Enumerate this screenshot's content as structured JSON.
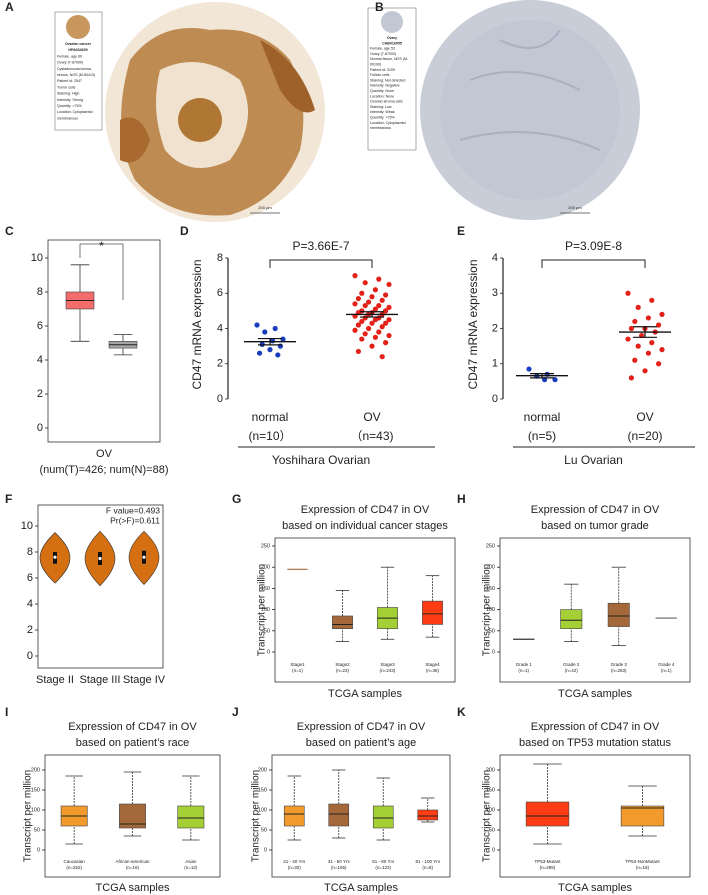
{
  "panel_labels": [
    "A",
    "B",
    "C",
    "D",
    "E",
    "F",
    "G",
    "H",
    "I",
    "J",
    "K"
  ],
  "image_panels": [
    {
      "card": [
        "Ovarian cancer",
        "HPA034609",
        "Female, age 60",
        "Ovary (T-87000)",
        "Cystadenocarcinoma,",
        "serous, NOS (M-84413)",
        "Patient id: 2547",
        "Tumor cells",
        "Staining: High",
        "Intensity: Strong",
        "Quantity: >75%",
        "Location: Cytoplasmic/",
        "membranous"
      ],
      "scale_bar": "200 µm"
    },
    {
      "card": [
        "Ovary",
        "CAB016055",
        "Female, age 53",
        "Ovary (T-87000)",
        "Normal tissue, NOS (M-",
        "00100)",
        "Patient id: 3109",
        "Follicle cells",
        "Staining: Not detected",
        "Intensity: Negative",
        "Quantity: None",
        "Location: None",
        "Ovarian stroma cells",
        "Staining: Low",
        "Intensity: Weak",
        "Quantity: >75%",
        "Location: Cytoplasmic/",
        "membranous"
      ],
      "scale_bar": "200 µm"
    }
  ],
  "chart_data": [
    {
      "type": "box",
      "ylim": [
        0,
        10
      ],
      "yticks": [
        0,
        2,
        4,
        6,
        8,
        10
      ],
      "frame": true,
      "categories": [
        null,
        null
      ],
      "colors": [
        "#f36b6b",
        "#a6a6a6"
      ],
      "whisker_low": [
        5.1,
        4.3
      ],
      "q1": [
        7.0,
        4.7
      ],
      "median": [
        7.5,
        4.9
      ],
      "q3": [
        8.0,
        5.1
      ],
      "whisker_high": [
        9.6,
        5.5
      ],
      "xlabel": "OV",
      "xlabel2": "(num(T)=426; num(N)=88)",
      "annotation": "*"
    },
    {
      "type": "dot",
      "ylim": [
        0,
        8
      ],
      "yticks": [
        0,
        2,
        4,
        6,
        8
      ],
      "frame": false,
      "ylabel": "CD47 mRNA expression",
      "categories": [
        "normal",
        "OV"
      ],
      "n_labels": [
        "(n=10）",
        "（n=43)"
      ],
      "group_label": "Yoshihara Ovarian",
      "p_value": "P=3.66E-7",
      "colors": [
        "#1a3dbd",
        "#e32119"
      ],
      "points": [
        [
          4.2,
          4.0,
          3.8,
          3.4,
          3.3,
          3.1,
          3.0,
          2.8,
          2.6,
          2.5
        ],
        [
          7.0,
          6.8,
          6.6,
          6.5,
          6.2,
          6.0,
          5.9,
          5.8,
          5.7,
          5.6,
          5.5,
          5.4,
          5.3,
          5.3,
          5.2,
          5.1,
          5.0,
          5.0,
          4.9,
          4.9,
          4.8,
          4.8,
          4.7,
          4.6,
          4.6,
          4.5,
          4.5,
          4.4,
          4.3,
          4.3,
          4.2,
          4.1,
          4.0,
          3.9,
          3.8,
          3.7,
          3.6,
          3.5,
          3.4,
          3.2,
          3.0,
          2.7,
          2.4
        ]
      ],
      "means": [
        3.25,
        4.8
      ],
      "sems": [
        0.18,
        0.15
      ]
    },
    {
      "type": "dot",
      "ylim": [
        0,
        4
      ],
      "yticks": [
        0,
        1,
        2,
        3,
        4
      ],
      "frame": false,
      "ylabel": "CD47 mRNA expression",
      "categories": [
        "normal",
        "OV"
      ],
      "n_labels": [
        "(n=5)",
        "(n=20)"
      ],
      "group_label": "Lu Ovarian",
      "p_value": "P=3.09E-8",
      "colors": [
        "#1a3dbd",
        "#e32119"
      ],
      "points": [
        [
          0.85,
          0.7,
          0.65,
          0.55,
          0.55
        ],
        [
          3.0,
          2.8,
          2.6,
          2.4,
          2.3,
          2.2,
          2.1,
          2.0,
          2.0,
          1.9,
          1.8,
          1.7,
          1.6,
          1.5,
          1.4,
          1.3,
          1.1,
          1.0,
          0.8,
          0.6
        ]
      ],
      "means": [
        0.66,
        1.9
      ],
      "sems": [
        0.06,
        0.15
      ]
    },
    {
      "type": "violin",
      "ylim": [
        0,
        10
      ],
      "yticks": [
        0,
        2,
        4,
        6,
        8,
        10
      ],
      "frame": true,
      "categories": [
        "Stage II",
        "Stage III",
        "Stage IV"
      ],
      "color": "#d46f12",
      "mins": [
        5.6,
        5.4,
        5.5
      ],
      "q1": [
        7.1,
        7.0,
        7.1
      ],
      "median": [
        7.6,
        7.5,
        7.6
      ],
      "q3": [
        8.0,
        8.0,
        8.1
      ],
      "maxs": [
        9.5,
        9.6,
        9.6
      ],
      "annotations": [
        "F value=0.493",
        "Pr(>F)=0.611"
      ]
    },
    {
      "type": "box",
      "ylim": [
        0,
        250
      ],
      "yticks": [
        0,
        50,
        100,
        150,
        200,
        250
      ],
      "frame": true,
      "title": "Expression of CD47 in OV",
      "subtitle": "based on individual cancer stages",
      "ylabel": "Transcript per million",
      "xlabel": "TCGA samples",
      "categories": [
        "Stage1",
        "Stage2",
        "Stage3",
        "Stage4"
      ],
      "n_labels": [
        "(n=1)",
        "(n=23)",
        "(n=243)",
        "(n=38)"
      ],
      "colors": [
        "#a5683a",
        "#a5683a",
        "#a4cf35",
        "#ff3d14"
      ],
      "whisker_low": [
        null,
        25,
        30,
        35
      ],
      "q1": [
        null,
        55,
        55,
        65
      ],
      "median": [
        195,
        65,
        80,
        90
      ],
      "q3": [
        null,
        85,
        105,
        120
      ],
      "whisker_high": [
        null,
        145,
        200,
        180
      ]
    },
    {
      "type": "box",
      "ylim": [
        0,
        250
      ],
      "yticks": [
        0,
        50,
        100,
        150,
        200,
        250
      ],
      "frame": true,
      "title": "Expression of CD47 in OV",
      "subtitle": "based on tumor grade",
      "ylabel": "Transcript per million",
      "xlabel": "TCGA samples",
      "categories": [
        "Grade 1",
        "Grade 2",
        "Grade 3",
        "Grade 4"
      ],
      "n_labels": [
        "(n=1)",
        "(n=42)",
        "(n=263)",
        "(n=1)"
      ],
      "colors": [
        "#333333",
        "#a4cf35",
        "#a5683a",
        "#666666"
      ],
      "whisker_low": [
        null,
        25,
        15,
        null
      ],
      "q1": [
        null,
        55,
        60,
        null
      ],
      "median": [
        30,
        75,
        85,
        80
      ],
      "q3": [
        null,
        100,
        115,
        null
      ],
      "whisker_high": [
        null,
        160,
        200,
        null
      ]
    },
    {
      "type": "box",
      "ylim": [
        0,
        225
      ],
      "yticks": [
        0,
        50,
        100,
        150,
        200
      ],
      "frame": true,
      "title": "Expression of CD47 in OV",
      "subtitle": "based on patient’s race",
      "ylabel": "Transcript per million",
      "xlabel": "TCGA samples",
      "categories": [
        "Caucasian",
        "African-american",
        "Asian"
      ],
      "n_labels": [
        "(n=252)",
        "(n=16)",
        "(n=12)"
      ],
      "colors": [
        "#f39a2c",
        "#a5683a",
        "#a4cf35"
      ],
      "whisker_low": [
        15,
        35,
        25
      ],
      "q1": [
        60,
        55,
        55
      ],
      "median": [
        85,
        65,
        80
      ],
      "q3": [
        110,
        115,
        110
      ],
      "whisker_high": [
        185,
        195,
        185
      ]
    },
    {
      "type": "box",
      "ylim": [
        0,
        225
      ],
      "yticks": [
        0,
        50,
        100,
        150,
        200
      ],
      "frame": true,
      "title": "Expression of CD47 in OV",
      "subtitle": "based on patient’s age",
      "ylabel": "Transcript per million",
      "xlabel": "TCGA samples",
      "categories": [
        "21 - 40 Yrs",
        "41 - 60 Yrs",
        "61 - 80 Yrs",
        "81 - 100 Yrs"
      ],
      "n_labels": [
        "(n=30)",
        "(n=165)",
        "(n=123)",
        "(n=8)"
      ],
      "colors": [
        "#f39a2c",
        "#a5683a",
        "#a4cf35",
        "#ff3d14"
      ],
      "whisker_low": [
        25,
        30,
        25,
        70
      ],
      "q1": [
        60,
        60,
        55,
        75
      ],
      "median": [
        90,
        90,
        80,
        85
      ],
      "q3": [
        110,
        115,
        110,
        100
      ],
      "whisker_high": [
        185,
        200,
        180,
        130
      ]
    },
    {
      "type": "box",
      "ylim": [
        0,
        225
      ],
      "yticks": [
        0,
        50,
        100,
        150,
        200
      ],
      "frame": true,
      "title": "Expression of CD47 in OV",
      "subtitle": "based on TP53 mutation status",
      "ylabel": "Transcript per million",
      "xlabel": "TCGA samples",
      "categories": [
        "TP53-Mutant",
        "TP53-NonMutant"
      ],
      "n_labels": [
        "(n=295)",
        "(n=18)"
      ],
      "colors": [
        "#ff3d14",
        "#f39a2c"
      ],
      "whisker_low": [
        15,
        35
      ],
      "q1": [
        60,
        60
      ],
      "median": [
        85,
        105
      ],
      "q3": [
        120,
        110
      ],
      "whisker_high": [
        215,
        160
      ]
    }
  ]
}
